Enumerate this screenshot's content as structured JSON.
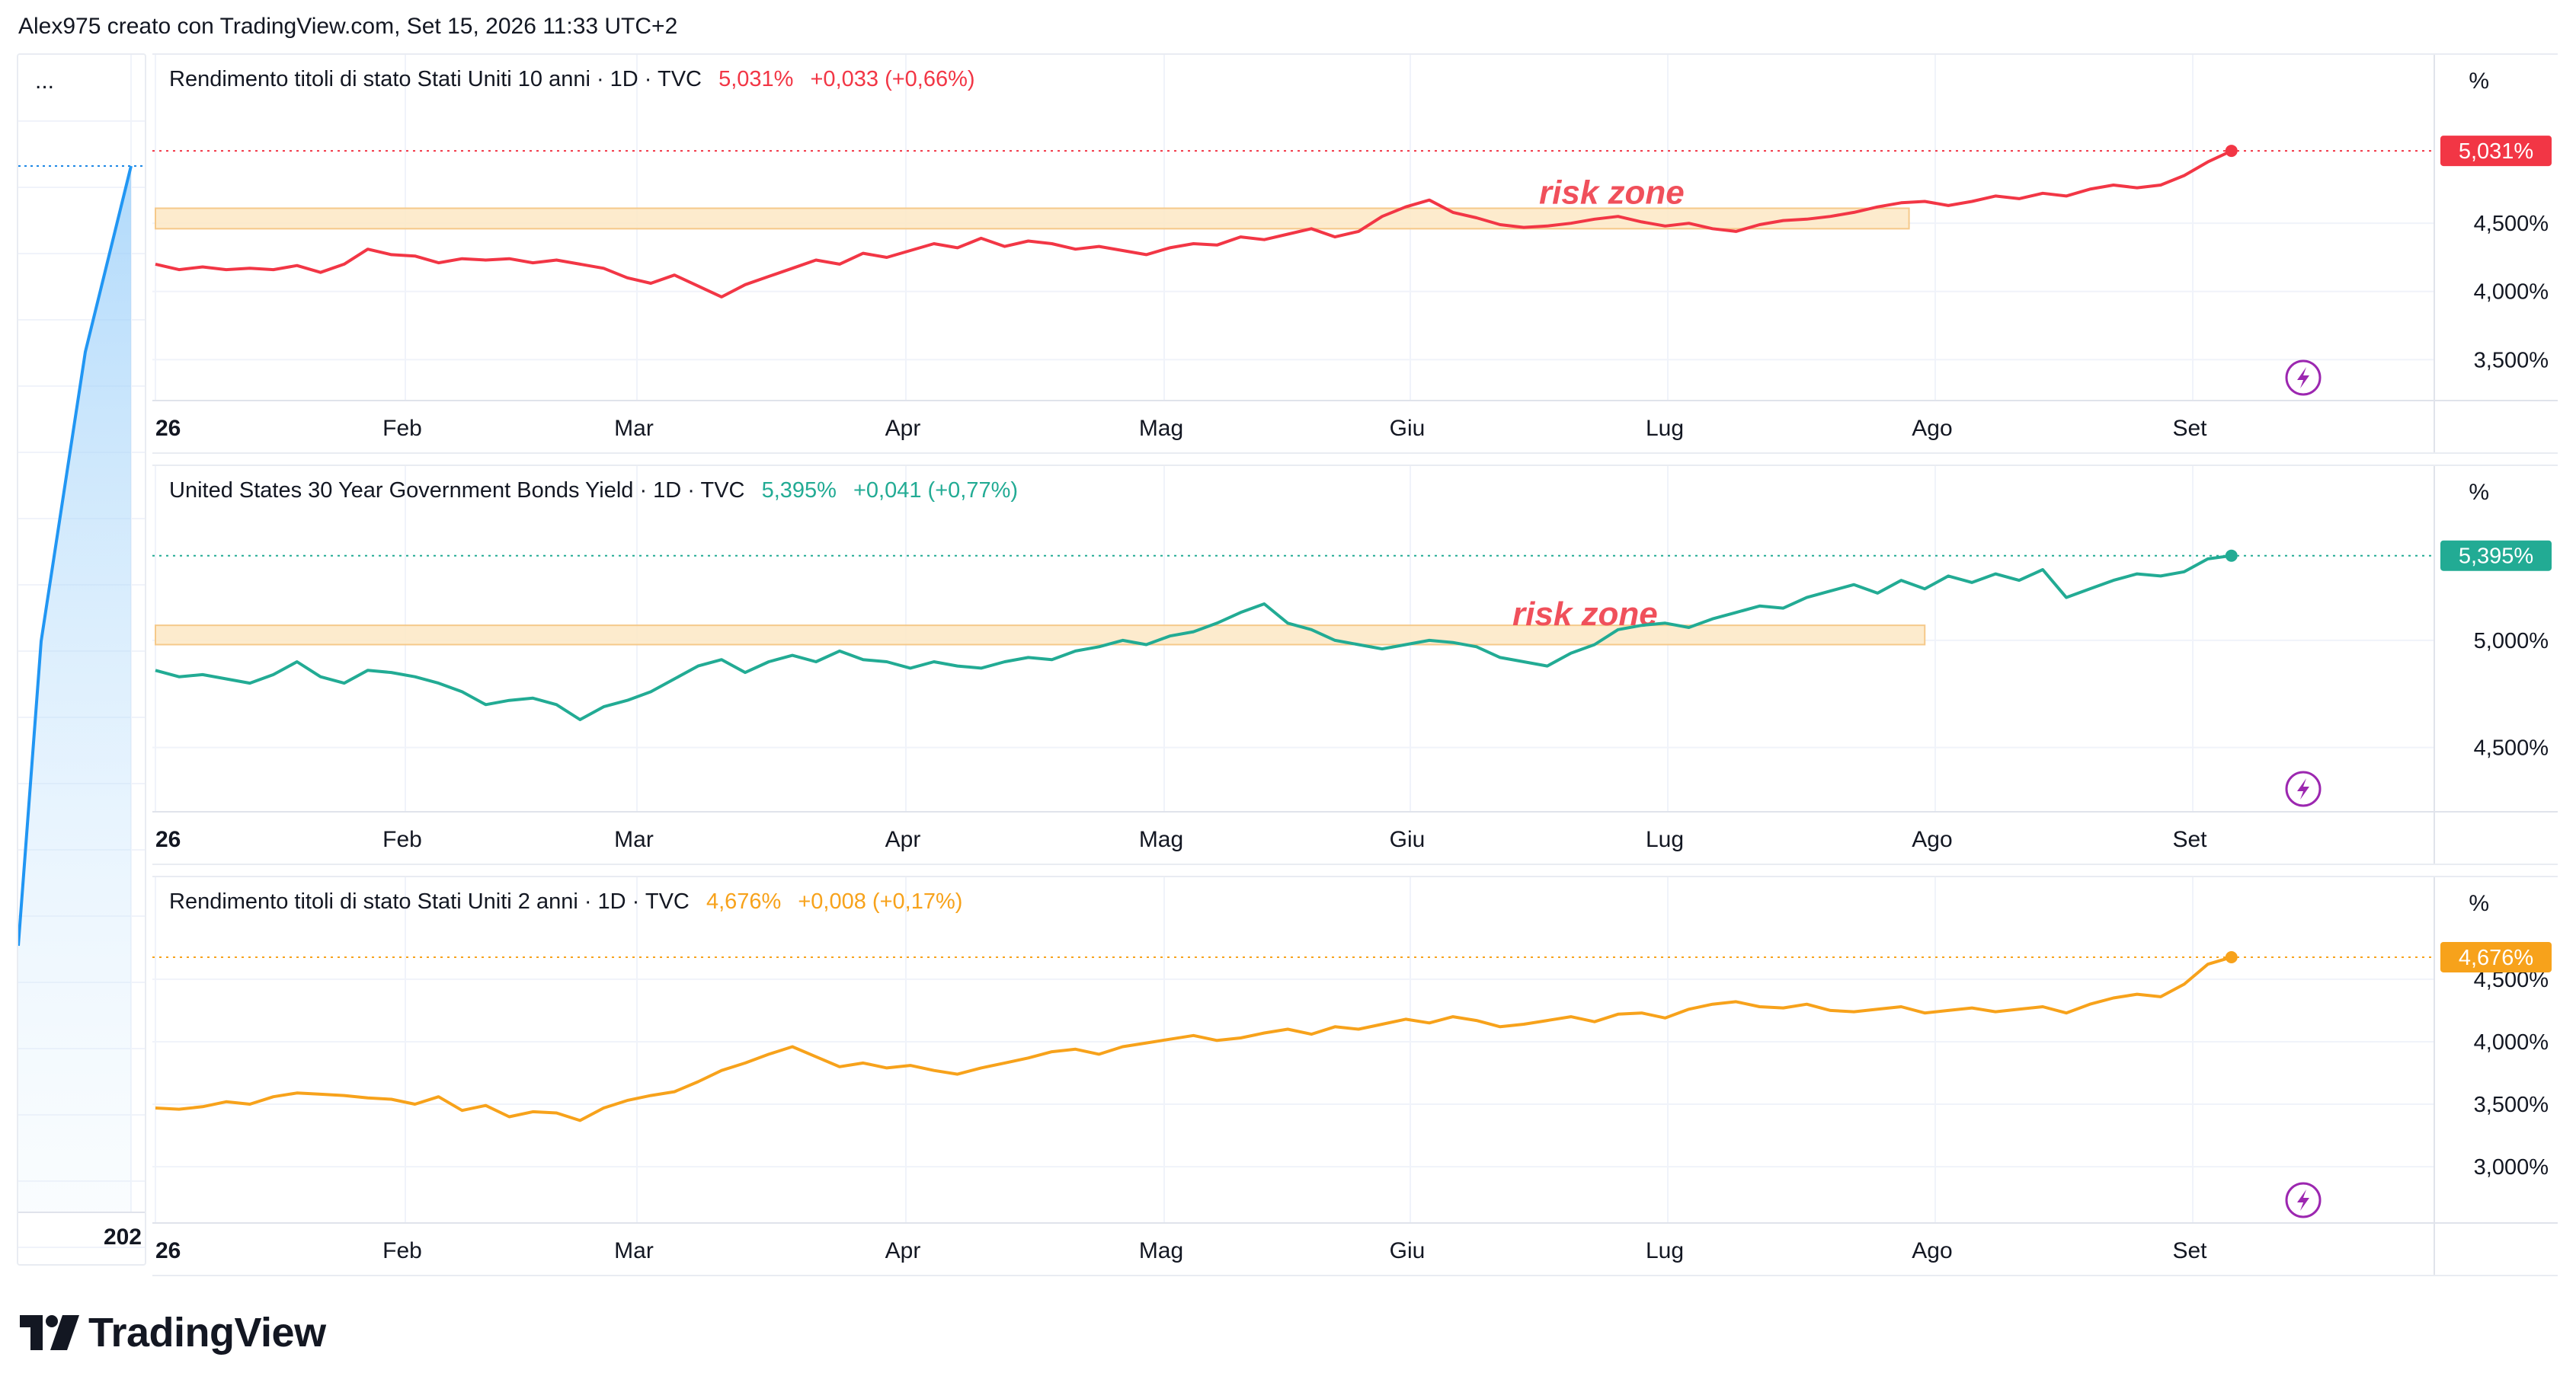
{
  "header": {
    "text": "Alex975 creato con TradingView.com, Set 15, 2026 11:33 UTC+2"
  },
  "left_pane": {
    "menu": "...",
    "year_label": "202"
  },
  "axis_unit": "%",
  "x_labels": [
    "26",
    "Feb",
    "Mar",
    "Apr",
    "Mag",
    "Giu",
    "Lug",
    "Ago",
    "Set"
  ],
  "annotation_text": "risk zone",
  "brand": {
    "name": "TradingView"
  },
  "colors": {
    "red": "#f23645",
    "teal": "#22ab94",
    "orange": "#f7a21b",
    "zone_fill": "#fde7c4",
    "zone_stroke": "#f5c98a",
    "grid": "#f0f3fa",
    "axis_text": "#131722",
    "bolt": "#9c27b0"
  },
  "chart_data": [
    {
      "type": "line",
      "title": "Rendimento titoli di stato Stati Uniti 10 anni · 1D · TVC",
      "last_value_label": "5,031%",
      "change_label": "+0,033 (+0,66%)",
      "color": "#f23645",
      "ylim": [
        3.2,
        5.4
      ],
      "yticks": [
        3.5,
        4.0,
        4.5
      ],
      "ytick_labels": [
        "3,500%",
        "4,000%",
        "4,500%"
      ],
      "last_value": 5.031,
      "risk_zone": {
        "y_low": 4.46,
        "y_high": 4.61,
        "x_start": 0,
        "x_end": 223
      },
      "x": [
        0,
        3,
        6,
        9,
        12,
        15,
        18,
        21,
        24,
        27,
        30,
        33,
        36,
        39,
        42,
        45,
        48,
        51,
        54,
        57,
        60,
        63,
        66,
        69,
        72,
        75,
        78,
        81,
        84,
        87,
        90,
        93,
        96,
        99,
        102,
        105,
        108,
        111,
        114,
        117,
        120,
        123,
        126,
        129,
        132,
        135,
        138,
        141,
        144,
        147,
        150,
        153,
        156,
        159,
        162,
        165,
        168,
        171,
        174,
        177,
        180,
        183,
        186,
        189,
        192,
        195,
        198,
        201,
        204,
        207,
        210,
        213,
        216,
        219,
        222,
        225,
        228,
        231,
        234,
        237,
        240,
        243,
        246,
        249,
        252,
        255,
        258,
        261,
        264
      ],
      "values": [
        4.2,
        4.16,
        4.18,
        4.16,
        4.17,
        4.16,
        4.19,
        4.14,
        4.2,
        4.31,
        4.27,
        4.26,
        4.21,
        4.24,
        4.23,
        4.24,
        4.21,
        4.23,
        4.2,
        4.17,
        4.1,
        4.06,
        4.12,
        4.04,
        3.96,
        4.05,
        4.11,
        4.17,
        4.23,
        4.2,
        4.28,
        4.25,
        4.3,
        4.35,
        4.32,
        4.39,
        4.33,
        4.37,
        4.35,
        4.31,
        4.33,
        4.3,
        4.27,
        4.32,
        4.35,
        4.34,
        4.4,
        4.38,
        4.42,
        4.46,
        4.4,
        4.44,
        4.55,
        4.62,
        4.67,
        4.58,
        4.54,
        4.49,
        4.47,
        4.48,
        4.5,
        4.53,
        4.55,
        4.51,
        4.48,
        4.5,
        4.46,
        4.44,
        4.49,
        4.52,
        4.53,
        4.55,
        4.58,
        4.62,
        4.65,
        4.66,
        4.63,
        4.66,
        4.7,
        4.68,
        4.72,
        4.7,
        4.75,
        4.78,
        4.76,
        4.78,
        4.85,
        4.95,
        5.031
      ]
    },
    {
      "type": "line",
      "title": "United States 30 Year Government Bonds Yield · 1D · TVC",
      "last_value_label": "5,395%",
      "change_label": "+0,041 (+0,77%)",
      "color": "#22ab94",
      "ylim": [
        4.2,
        5.6
      ],
      "yticks": [
        4.5,
        5.0
      ],
      "ytick_labels": [
        "4,500%",
        "5,000%"
      ],
      "last_value": 5.395,
      "risk_zone": {
        "y_low": 4.98,
        "y_high": 5.07,
        "x_start": 0,
        "x_end": 225
      },
      "x": [
        0,
        3,
        6,
        9,
        12,
        15,
        18,
        21,
        24,
        27,
        30,
        33,
        36,
        39,
        42,
        45,
        48,
        51,
        54,
        57,
        60,
        63,
        66,
        69,
        72,
        75,
        78,
        81,
        84,
        87,
        90,
        93,
        96,
        99,
        102,
        105,
        108,
        111,
        114,
        117,
        120,
        123,
        126,
        129,
        132,
        135,
        138,
        141,
        144,
        147,
        150,
        153,
        156,
        159,
        162,
        165,
        168,
        171,
        174,
        177,
        180,
        183,
        186,
        189,
        192,
        195,
        198,
        201,
        204,
        207,
        210,
        213,
        216,
        219,
        222,
        225,
        228,
        231,
        234,
        237,
        240,
        243,
        246,
        249,
        252,
        255,
        258,
        261,
        264
      ],
      "values": [
        4.86,
        4.83,
        4.84,
        4.82,
        4.8,
        4.84,
        4.9,
        4.83,
        4.8,
        4.86,
        4.85,
        4.83,
        4.8,
        4.76,
        4.7,
        4.72,
        4.73,
        4.7,
        4.63,
        4.69,
        4.72,
        4.76,
        4.82,
        4.88,
        4.91,
        4.85,
        4.9,
        4.93,
        4.9,
        4.95,
        4.91,
        4.9,
        4.87,
        4.9,
        4.88,
        4.87,
        4.9,
        4.92,
        4.91,
        4.95,
        4.97,
        5.0,
        4.98,
        5.02,
        5.04,
        5.08,
        5.13,
        5.17,
        5.08,
        5.05,
        5.0,
        4.98,
        4.96,
        4.98,
        5.0,
        4.99,
        4.97,
        4.92,
        4.9,
        4.88,
        4.94,
        4.98,
        5.05,
        5.07,
        5.08,
        5.06,
        5.1,
        5.13,
        5.16,
        5.15,
        5.2,
        5.23,
        5.26,
        5.22,
        5.28,
        5.24,
        5.3,
        5.27,
        5.31,
        5.28,
        5.33,
        5.2,
        5.24,
        5.28,
        5.31,
        5.3,
        5.32,
        5.38,
        5.395
      ]
    },
    {
      "type": "line",
      "title": "Rendimento titoli di stato Stati Uniti 2 anni · 1D · TVC",
      "last_value_label": "4,676%",
      "change_label": "+0,008 (+0,17%)",
      "color": "#f7a21b",
      "ylim": [
        2.55,
        4.95
      ],
      "yticks": [
        3.0,
        3.5,
        4.0,
        4.5
      ],
      "ytick_labels": [
        "3,000%",
        "3,500%",
        "4,000%",
        "4,500%"
      ],
      "last_value": 4.676,
      "x": [
        0,
        3,
        6,
        9,
        12,
        15,
        18,
        21,
        24,
        27,
        30,
        33,
        36,
        39,
        42,
        45,
        48,
        51,
        54,
        57,
        60,
        63,
        66,
        69,
        72,
        75,
        78,
        81,
        84,
        87,
        90,
        93,
        96,
        99,
        102,
        105,
        108,
        111,
        114,
        117,
        120,
        123,
        126,
        129,
        132,
        135,
        138,
        141,
        144,
        147,
        150,
        153,
        156,
        159,
        162,
        165,
        168,
        171,
        174,
        177,
        180,
        183,
        186,
        189,
        192,
        195,
        198,
        201,
        204,
        207,
        210,
        213,
        216,
        219,
        222,
        225,
        228,
        231,
        234,
        237,
        240,
        243,
        246,
        249,
        252,
        255,
        258,
        261,
        264
      ],
      "values": [
        3.47,
        3.46,
        3.48,
        3.52,
        3.5,
        3.56,
        3.59,
        3.58,
        3.57,
        3.55,
        3.54,
        3.5,
        3.56,
        3.45,
        3.49,
        3.4,
        3.44,
        3.43,
        3.37,
        3.47,
        3.53,
        3.57,
        3.6,
        3.68,
        3.77,
        3.83,
        3.9,
        3.96,
        3.88,
        3.8,
        3.83,
        3.79,
        3.81,
        3.77,
        3.74,
        3.79,
        3.83,
        3.87,
        3.92,
        3.94,
        3.9,
        3.96,
        3.99,
        4.02,
        4.05,
        4.01,
        4.03,
        4.07,
        4.1,
        4.06,
        4.12,
        4.1,
        4.14,
        4.18,
        4.15,
        4.2,
        4.17,
        4.12,
        4.14,
        4.17,
        4.2,
        4.16,
        4.22,
        4.23,
        4.19,
        4.26,
        4.3,
        4.32,
        4.28,
        4.27,
        4.3,
        4.25,
        4.24,
        4.26,
        4.28,
        4.23,
        4.25,
        4.27,
        4.24,
        4.26,
        4.28,
        4.23,
        4.3,
        4.35,
        4.38,
        4.36,
        4.46,
        4.62,
        4.676
      ]
    }
  ]
}
